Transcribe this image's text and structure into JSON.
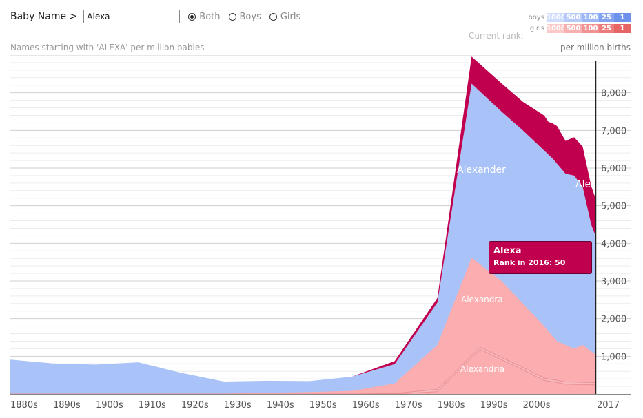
{
  "header": {
    "baby_name_label": "Baby Name >",
    "input_value": "Alexa",
    "radios": [
      {
        "label": "Both",
        "selected": true
      },
      {
        "label": "Boys",
        "selected": false
      },
      {
        "label": "Girls",
        "selected": false
      }
    ]
  },
  "legend": {
    "boys_label": "boys",
    "girls_label": "girls",
    "cells": [
      "1000",
      "500",
      "100",
      "25",
      "1"
    ],
    "boys_colors": [
      "#cfdcfb",
      "#b8cbf8",
      "#9db7f4",
      "#83a3f0",
      "#6d92ec"
    ],
    "girls_colors": [
      "#fbc9c9",
      "#f7b0b0",
      "#f19393",
      "#ec7c7c",
      "#e66666"
    ],
    "current_rank_label": "Current rank:"
  },
  "chart_data": {
    "type": "area",
    "subtitle": "Names starting with 'ALEXA' per million babies",
    "unit_label": "per million births",
    "x_ticks": [
      "1880s",
      "1890s",
      "1900s",
      "1910s",
      "1920s",
      "1930s",
      "1940s",
      "1950s",
      "1960s",
      "1970s",
      "1980s",
      "1990s",
      "2000s",
      "2017"
    ],
    "y_ticks": [
      1000,
      2000,
      3000,
      4000,
      5000,
      6000,
      7000,
      8000
    ],
    "y_tick_labels": [
      "1,000",
      "2,000",
      "3,000",
      "4,000",
      "5,000",
      "6,000",
      "7,000",
      "8,000"
    ],
    "ylim": [
      0,
      9000
    ],
    "xlim": [
      1880,
      2017
    ],
    "colors": {
      "boys": "#a9c2f7",
      "girls": "#fbadaf",
      "highlight": "#c0004f",
      "boys_line": "#8faaf0"
    },
    "series": [
      {
        "name": "Alexander",
        "gender": "boys",
        "points": [
          [
            1880,
            910
          ],
          [
            1890,
            810
          ],
          [
            1900,
            780
          ],
          [
            1910,
            840
          ],
          [
            1920,
            560
          ],
          [
            1930,
            330
          ],
          [
            1940,
            350
          ],
          [
            1950,
            340
          ],
          [
            1960,
            460
          ],
          [
            1970,
            790
          ],
          [
            1980,
            2430
          ],
          [
            1988,
            8240
          ],
          [
            1995,
            7500
          ],
          [
            2000,
            7000
          ],
          [
            2007,
            6250
          ],
          [
            2010,
            5850
          ],
          [
            2012,
            5800
          ],
          [
            2014,
            5500
          ],
          [
            2016,
            4500
          ],
          [
            2017,
            4200
          ]
        ]
      },
      {
        "name": "Alexandra",
        "gender": "girls",
        "points": [
          [
            1880,
            0
          ],
          [
            1930,
            10
          ],
          [
            1950,
            50
          ],
          [
            1960,
            80
          ],
          [
            1970,
            280
          ],
          [
            1980,
            1300
          ],
          [
            1988,
            3620
          ],
          [
            1995,
            3000
          ],
          [
            2000,
            2400
          ],
          [
            2005,
            1800
          ],
          [
            2008,
            1400
          ],
          [
            2012,
            1200
          ],
          [
            2014,
            1300
          ],
          [
            2017,
            1050
          ]
        ]
      },
      {
        "name": "Alexa",
        "gender": "girls",
        "highlight": true,
        "rank_2016": 50,
        "points": [
          [
            1880,
            0
          ],
          [
            1960,
            0
          ],
          [
            1970,
            80
          ],
          [
            1980,
            120
          ],
          [
            1988,
            720
          ],
          [
            1995,
            750
          ],
          [
            2000,
            760
          ],
          [
            2005,
            930
          ],
          [
            2006,
            870
          ],
          [
            2008,
            1000
          ],
          [
            2010,
            870
          ],
          [
            2012,
            1020
          ],
          [
            2014,
            1070
          ],
          [
            2017,
            1000
          ]
        ]
      },
      {
        "name": "Alexandria",
        "gender": "girls",
        "points": [
          [
            1880,
            0
          ],
          [
            1960,
            0
          ],
          [
            1970,
            15
          ],
          [
            1980,
            120
          ],
          [
            1990,
            1240
          ],
          [
            2000,
            700
          ],
          [
            2005,
            420
          ],
          [
            2010,
            320
          ],
          [
            2017,
            300
          ]
        ]
      }
    ],
    "labels": {
      "alexander": "Alexander",
      "alexandra": "Alexandra",
      "alexandria": "Alexandria",
      "alexa_cut": "Alexa"
    }
  },
  "tooltip": {
    "name": "Alexa",
    "rank_text": "Rank in 2016: 50"
  }
}
